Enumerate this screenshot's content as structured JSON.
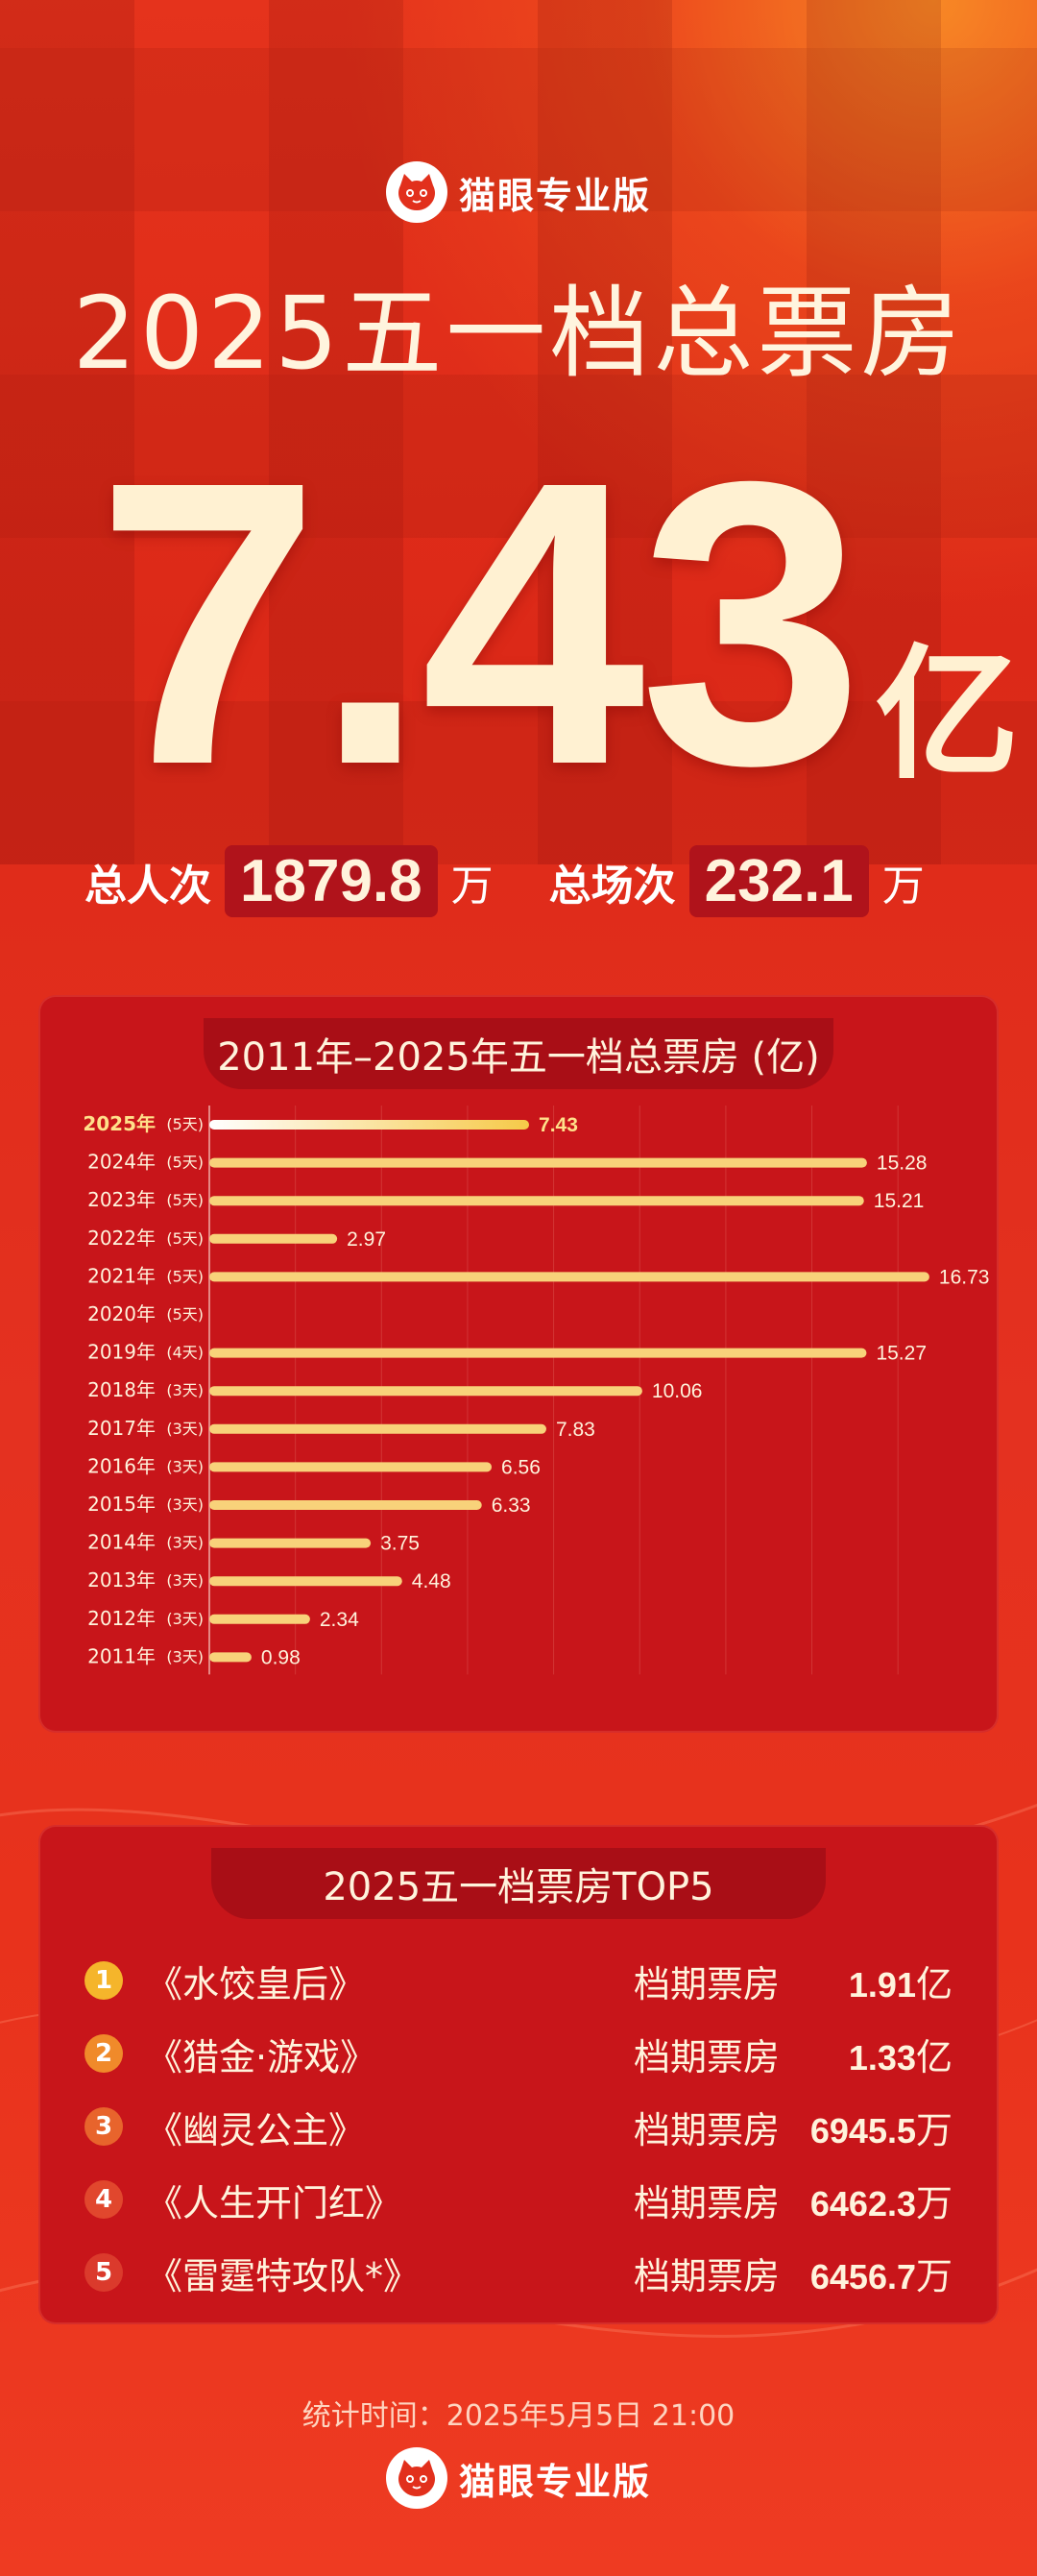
{
  "header": {
    "brand": "猫眼专业版",
    "title": "2025五一档总票房",
    "total_value": "7.43",
    "total_unit": "亿"
  },
  "stats": {
    "viewers_label": "总人次",
    "viewers_value": "1879.8",
    "viewers_unit": "万",
    "shows_label": "总场次",
    "shows_value": "232.1",
    "shows_unit": "万"
  },
  "chart_data": {
    "type": "bar",
    "title": "2011年–2025年五一档总票房 (亿)",
    "orientation": "horizontal",
    "categories": [
      "2025年",
      "2024年",
      "2023年",
      "2022年",
      "2021年",
      "2020年",
      "2019年",
      "2018年",
      "2017年",
      "2016年",
      "2015年",
      "2014年",
      "2013年",
      "2012年",
      "2011年"
    ],
    "days": [
      "(5天)",
      "(5天)",
      "(5天)",
      "(5天)",
      "(5天)",
      "(5天)",
      "(4天)",
      "(3天)",
      "(3天)",
      "(3天)",
      "(3天)",
      "(3天)",
      "(3天)",
      "(3天)",
      "(3天)"
    ],
    "values": [
      7.43,
      15.28,
      15.21,
      2.97,
      16.73,
      null,
      15.27,
      10.06,
      7.83,
      6.56,
      6.33,
      3.75,
      4.48,
      2.34,
      0.98
    ],
    "labels": [
      "7.43",
      "15.28",
      "15.21",
      "2.97",
      "16.73",
      "",
      "15.27",
      "10.06",
      "7.83",
      "6.56",
      "6.33",
      "3.75",
      "4.48",
      "2.34",
      "0.98"
    ],
    "xlim": [
      0,
      17
    ],
    "highlight_index": 0,
    "colors": {
      "bar": "#f8d27a",
      "highlight_start": "#ffffff",
      "highlight_end": "#f6c948",
      "label": "#fff3dc",
      "highlight_label": "#ffe08a",
      "grid": "rgba(255,200,180,0.18)"
    }
  },
  "top5": {
    "title": "2025五一档票房TOP5",
    "items": [
      {
        "rank": "1",
        "title": "《水饺皇后》",
        "label": "档期票房",
        "value": "1.91",
        "unit": "亿",
        "color": "#f5b52b"
      },
      {
        "rank": "2",
        "title": "《猎金·游戏》",
        "label": "档期票房",
        "value": "1.33",
        "unit": "亿",
        "color": "#f08a2a"
      },
      {
        "rank": "3",
        "title": "《幽灵公主》",
        "label": "档期票房",
        "value": "6945.5",
        "unit": "万",
        "color": "#e8642c"
      },
      {
        "rank": "4",
        "title": "《人生开门红》",
        "label": "档期票房",
        "value": "6462.3",
        "unit": "万",
        "color": "#e1472d"
      },
      {
        "rank": "5",
        "title": "《雷霆特攻队*》",
        "label": "档期票房",
        "value": "6456.7",
        "unit": "万",
        "color": "#db3a2c"
      }
    ]
  },
  "footer": {
    "time": "统计时间：2025年5月5日  21:00",
    "brand": "猫眼专业版"
  },
  "colors": {
    "background": "#e2301c",
    "panel": "#c8151a",
    "panel_title": "#a90e16",
    "cream": "#fff3dc"
  }
}
